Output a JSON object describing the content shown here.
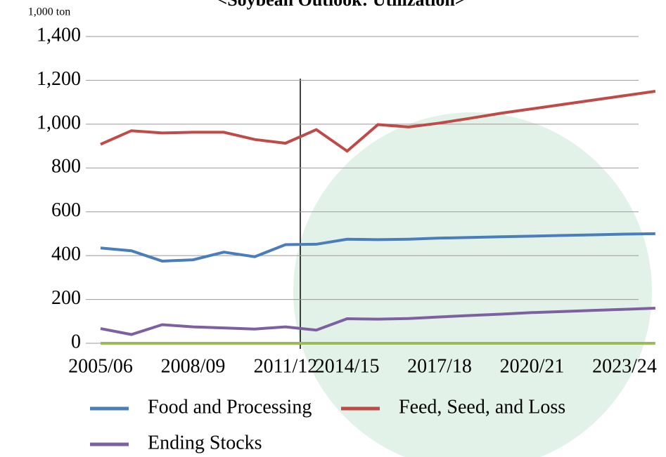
{
  "chart_data": {
    "type": "line",
    "title": "<Soybean Outlook: Utilization>",
    "y_unit": "1,000 ton",
    "categories": [
      "2005/06",
      null,
      null,
      "2008/09",
      null,
      null,
      "2011/12",
      null,
      "2014/15",
      null,
      null,
      "2017/18",
      null,
      null,
      "2020/21",
      null,
      null,
      "2023/24",
      null
    ],
    "series": [
      {
        "name": "Food and Processing",
        "color": "#4a7ebb",
        "values": [
          435,
          422,
          375,
          381,
          416,
          395,
          450,
          452,
          475,
          473,
          475,
          480,
          483,
          486,
          489,
          492,
          495,
          498,
          500
        ]
      },
      {
        "name": "Feed, Seed, and Loss",
        "color": "#be4b48",
        "values": [
          908,
          970,
          960,
          963,
          963,
          930,
          913,
          975,
          877,
          998,
          987,
          1005,
          1027,
          1050,
          1070,
          1090,
          1110,
          1130,
          1150
        ]
      },
      {
        "name": "Ending Stocks",
        "color": "#7d60a0",
        "values": [
          67,
          40,
          85,
          75,
          70,
          65,
          75,
          60,
          112,
          110,
          113,
          120,
          127,
          133,
          140,
          145,
          150,
          155,
          160
        ]
      },
      {
        "color": "#9bbb59",
        "values": [
          0,
          0,
          0,
          0,
          0,
          0,
          0,
          0,
          0,
          0,
          0,
          0,
          0,
          0,
          0,
          0,
          0,
          0,
          0
        ]
      }
    ],
    "ylim": [
      0,
      1400
    ],
    "yticks": [
      0,
      200,
      400,
      600,
      800,
      {
        "value": 1000,
        "label": "1,000"
      },
      {
        "value": 1200,
        "label": "1,200"
      },
      {
        "value": 1400,
        "label": "1,400"
      }
    ],
    "grid": true
  }
}
